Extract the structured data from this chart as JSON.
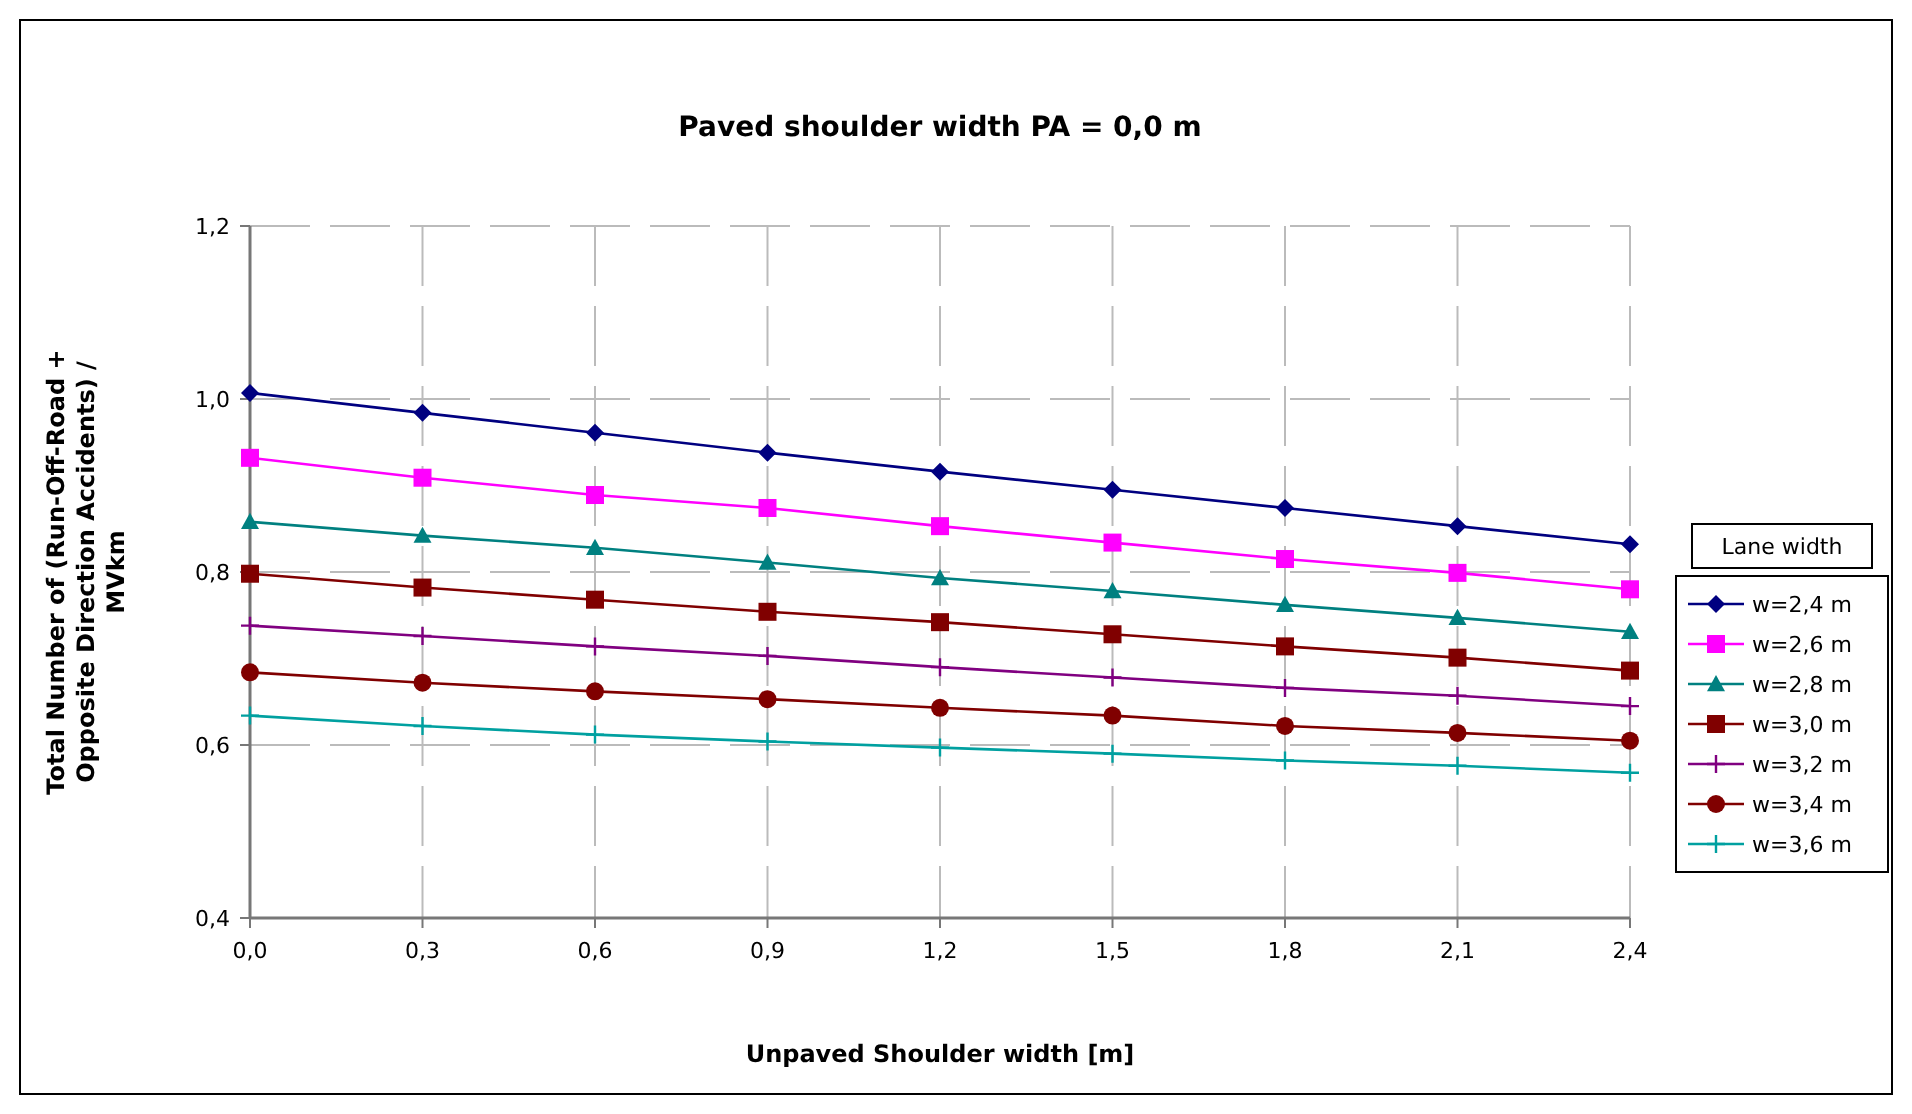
{
  "chart_data": {
    "type": "line",
    "title": "Paved shoulder width PA = 0,0 m",
    "xlabel": "Unpaved Shoulder width [m]",
    "ylabel": "Total Number of (Run-Off-Road + Opposite Direction Accidents) / MVkm",
    "legend_title": "Lane width",
    "legend": "right",
    "grid": true,
    "line_style": "solid",
    "x": [
      0,
      0.3,
      0.6,
      0.9,
      1.2,
      1.5,
      1.8,
      2.1,
      2.4
    ],
    "xlim": [
      0,
      2.4
    ],
    "xticks": [
      {
        "value": 0,
        "label": "0,0"
      },
      {
        "value": 0.3,
        "label": "0,3"
      },
      {
        "value": 0.6,
        "label": "0,6"
      },
      {
        "value": 0.9,
        "label": "0,9"
      },
      {
        "value": 1.2,
        "label": "1,2"
      },
      {
        "value": 1.5,
        "label": "1,5"
      },
      {
        "value": 1.8,
        "label": "1,8"
      },
      {
        "value": 2.1,
        "label": "2,1"
      },
      {
        "value": 2.4,
        "label": "2,4"
      }
    ],
    "ylim": [
      0.4,
      1.2
    ],
    "yticks": [
      {
        "value": 0.4,
        "label": "0,4"
      },
      {
        "value": 0.6,
        "label": "0,6"
      },
      {
        "value": 0.8,
        "label": "0,8"
      },
      {
        "value": 1.0,
        "label": "1,0"
      },
      {
        "value": 1.2,
        "label": "1,2"
      }
    ],
    "series": [
      {
        "name": "w=2,4 m",
        "color": "#000080",
        "marker": "diamond",
        "values": [
          1.007,
          0.984,
          0.961,
          0.938,
          0.916,
          0.895,
          0.874,
          0.853,
          0.832
        ]
      },
      {
        "name": "w=2,6 m",
        "color": "#ff00ff",
        "marker": "square",
        "values": [
          0.932,
          0.909,
          0.889,
          0.874,
          0.853,
          0.834,
          0.815,
          0.799,
          0.78
        ]
      },
      {
        "name": "w=2,8 m",
        "color": "#008080",
        "marker": "triangle",
        "values": [
          0.858,
          0.842,
          0.828,
          0.811,
          0.793,
          0.778,
          0.762,
          0.747,
          0.731
        ]
      },
      {
        "name": "w=3,0 m",
        "color": "#800000",
        "marker": "square",
        "values": [
          0.798,
          0.782,
          0.768,
          0.754,
          0.742,
          0.728,
          0.714,
          0.701,
          0.686
        ]
      },
      {
        "name": "w=3,2 m",
        "color": "#800080",
        "marker": "cross",
        "values": [
          0.738,
          0.726,
          0.714,
          0.703,
          0.69,
          0.678,
          0.666,
          0.657,
          0.645
        ]
      },
      {
        "name": "w=3,4 m",
        "color": "#800000",
        "marker": "circle",
        "values": [
          0.684,
          0.672,
          0.662,
          0.653,
          0.643,
          0.634,
          0.622,
          0.614,
          0.605
        ]
      },
      {
        "name": "w=3,6 m",
        "color": "#00a0a0",
        "marker": "cross",
        "values": [
          0.634,
          0.622,
          0.612,
          0.604,
          0.597,
          0.59,
          0.582,
          0.576,
          0.568
        ]
      }
    ]
  }
}
